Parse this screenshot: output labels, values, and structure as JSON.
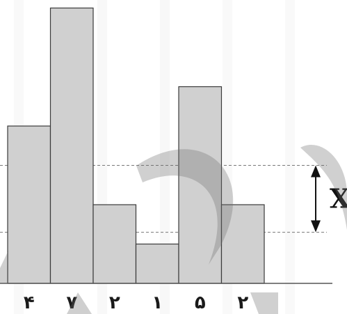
{
  "chart_data": {
    "type": "bar",
    "categories": [
      "۴",
      "۷",
      "۲",
      "۱",
      "۵",
      "۲"
    ],
    "values": [
      4,
      7,
      2,
      1,
      5,
      2
    ],
    "ylim": [
      0,
      7
    ],
    "grid": false,
    "reference_lines": [
      1.3,
      3
    ]
  },
  "annotation": {
    "marker_label": "X",
    "between_values": [
      1.3,
      3
    ]
  },
  "colors": {
    "bar_fill": "#d0d0d0",
    "bar_stroke": "#3a3a3a",
    "axis": "#555555",
    "dashed_line": "#777777",
    "watermark": "#6e6e6e"
  }
}
